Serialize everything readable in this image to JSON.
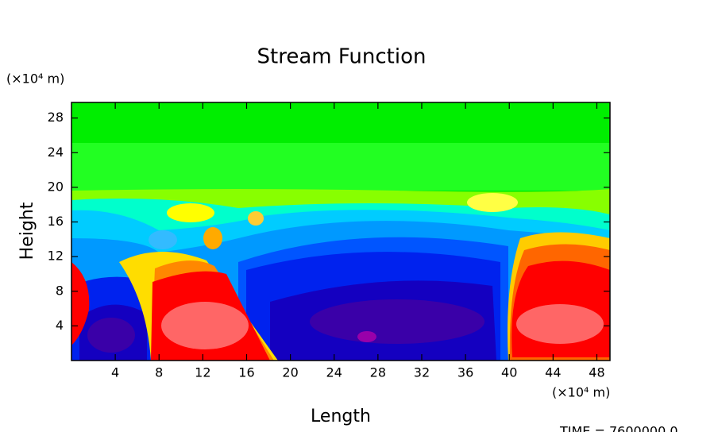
{
  "chart_data": {
    "type": "contour",
    "title": "Stream Function",
    "x_label": "Length",
    "y_label": "Height",
    "x_unit": "(×10⁴ m)",
    "y_unit": "(×10⁴ m)",
    "xlim": [
      0,
      49.2
    ],
    "ylim": [
      0,
      29.8
    ],
    "xticks": [
      4,
      8,
      12,
      16,
      20,
      24,
      28,
      32,
      36,
      40,
      44,
      48
    ],
    "yticks": [
      4,
      8,
      12,
      16,
      20,
      24,
      28
    ],
    "footer": "TIME = 7600000.0"
  }
}
